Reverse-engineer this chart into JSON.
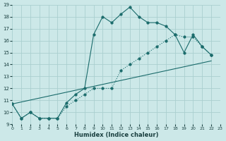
{
  "xlabel": "Humidex (Indice chaleur)",
  "bg_color": "#cce8e8",
  "grid_color": "#aacfcf",
  "line_color": "#1a6b6b",
  "xlim": [
    0,
    23
  ],
  "ylim": [
    9,
    19
  ],
  "xticks": [
    0,
    1,
    2,
    3,
    4,
    5,
    6,
    7,
    8,
    9,
    10,
    11,
    12,
    13,
    14,
    15,
    16,
    17,
    18,
    19,
    20,
    21,
    22,
    23
  ],
  "yticks": [
    9,
    10,
    11,
    12,
    13,
    14,
    15,
    16,
    17,
    18,
    19
  ],
  "series1_x": [
    0,
    1,
    2,
    3,
    4,
    5,
    6,
    7,
    8,
    9,
    10,
    11,
    12,
    13,
    14,
    15,
    16,
    17,
    18,
    19,
    20,
    21,
    22
  ],
  "series1_y": [
    10.7,
    9.5,
    10.0,
    9.5,
    9.5,
    9.5,
    10.5,
    11.0,
    11.5,
    12.0,
    12.0,
    12.0,
    13.5,
    14.0,
    14.5,
    15.0,
    15.5,
    16.0,
    16.5,
    16.3,
    16.3,
    15.5,
    14.8
  ],
  "series2_x": [
    0,
    1,
    2,
    3,
    4,
    5,
    6,
    7,
    8,
    9,
    10,
    11,
    12,
    13,
    14,
    15,
    16,
    17,
    18,
    19,
    20,
    21,
    22
  ],
  "series2_y": [
    10.7,
    9.5,
    10.0,
    9.5,
    9.5,
    9.5,
    10.8,
    11.5,
    12.0,
    16.5,
    18.0,
    17.5,
    18.2,
    18.8,
    18.0,
    17.5,
    17.5,
    17.2,
    16.5,
    15.0,
    16.5,
    15.5,
    14.8
  ],
  "series3_x": [
    0,
    22
  ],
  "series3_y": [
    10.7,
    14.3
  ]
}
